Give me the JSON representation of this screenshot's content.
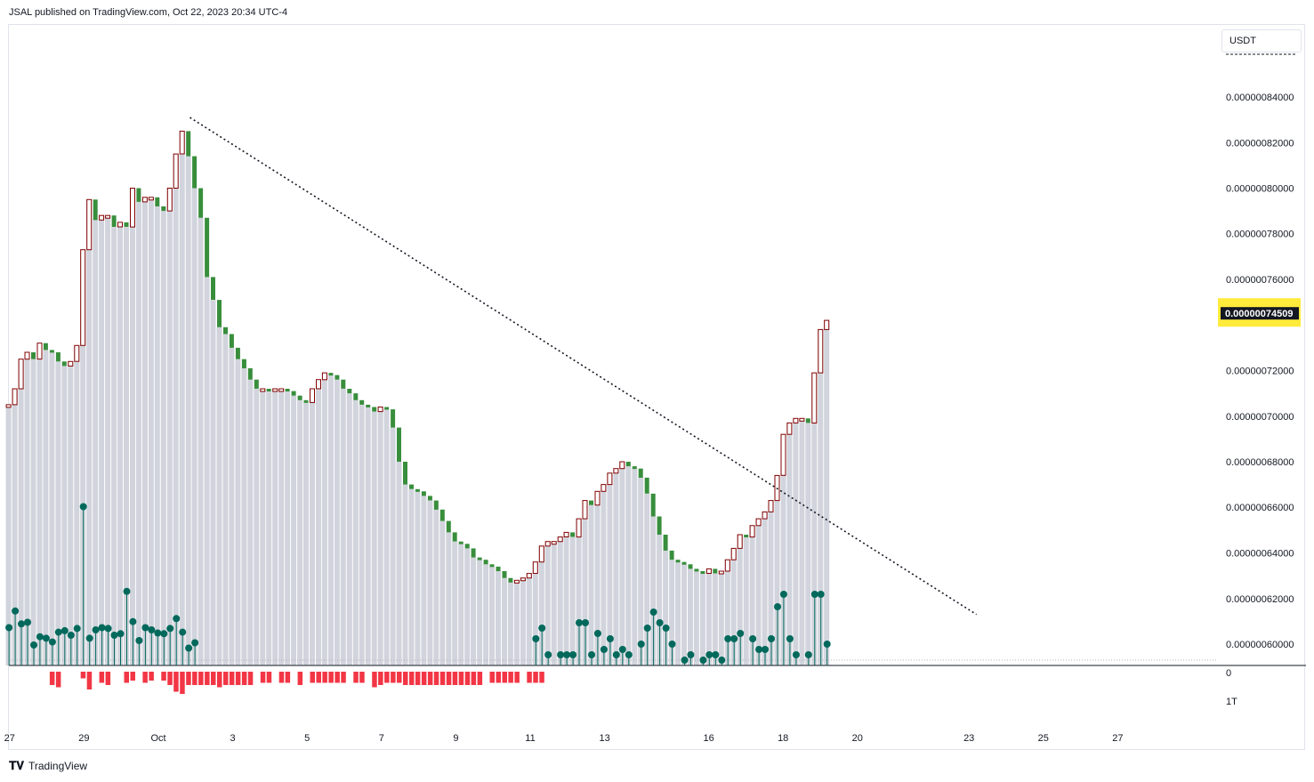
{
  "header": {
    "text": "JSAL published on TradingView.com, Oct 22, 2023 20:34 UTC-4"
  },
  "currency": "USDT",
  "footer": {
    "brand": "TradingView"
  },
  "colors": {
    "volume_profile": "#d1d4dc",
    "bull_body": "#ffffff",
    "bull_border": "#800000",
    "bear_body": "#388e3c",
    "pin": "#00695c",
    "neg_bar": "#f23645",
    "trendline": "#131722",
    "price_tag": "#131722",
    "price_tag_bg": "#ffeb3b"
  },
  "chart_data": {
    "type": "candlestick",
    "price_axis": {
      "ticks": [
        "0.00000084000",
        "0.00000082000",
        "0.00000080000",
        "0.00000078000",
        "0.00000076000",
        "0.00000072000",
        "0.00000070000",
        "0.00000068000",
        "0.00000066000",
        "0.00000064000",
        "0.00000062000",
        "0.00000060000"
      ],
      "range": [
        5.93e-07,
        8.62e-07
      ],
      "current_price": "0.00000074509",
      "current_value": 7.4509e-07
    },
    "indicator_axis": {
      "ticks": [
        "0",
        "1T"
      ]
    },
    "time_axis": {
      "labels": [
        "27",
        "29",
        "Oct",
        "3",
        "5",
        "7",
        "9",
        "11",
        "13",
        "16",
        "18",
        "20",
        "23",
        "25",
        "27"
      ],
      "positions_day": [
        -4,
        -2,
        0,
        2,
        4,
        6,
        8,
        10,
        12,
        14.8,
        16.8,
        18.8,
        21.8,
        23.8,
        25.8
      ]
    },
    "trendline": {
      "from": {
        "day": 0.85,
        "price": 8.31e-07
      },
      "to": {
        "day": 22.0,
        "price": 6.13e-07
      },
      "style": "dotted"
    },
    "closes": [
      7.05e-07,
      7.12e-07,
      7.25e-07,
      7.28e-07,
      7.25e-07,
      7.32e-07,
      7.29e-07,
      7.28e-07,
      7.24e-07,
      7.22e-07,
      7.24e-07,
      7.31e-07,
      7.73e-07,
      7.95e-07,
      7.86e-07,
      7.88e-07,
      7.88e-07,
      7.83e-07,
      7.85e-07,
      7.83e-07,
      8e-07,
      7.94e-07,
      7.96e-07,
      7.96e-07,
      7.92e-07,
      7.9e-07,
      8e-07,
      8.15e-07,
      8.25e-07,
      8.14e-07,
      8e-07,
      7.87e-07,
      7.61e-07,
      7.51e-07,
      7.39e-07,
      7.36e-07,
      7.3e-07,
      7.25e-07,
      7.21e-07,
      7.16e-07,
      7.12e-07,
      7.12e-07,
      7.11e-07,
      7.12e-07,
      7.12e-07,
      7.11e-07,
      7.09e-07,
      7.07e-07,
      7.06e-07,
      7.12e-07,
      7.16e-07,
      7.19e-07,
      7.18e-07,
      7.16e-07,
      7.12e-07,
      7.1e-07,
      7.07e-07,
      7.05e-07,
      7.04e-07,
      7.02e-07,
      7.04e-07,
      7.03e-07,
      6.95e-07,
      6.8e-07,
      6.7e-07,
      6.68e-07,
      6.67e-07,
      6.65e-07,
      6.63e-07,
      6.59e-07,
      6.54e-07,
      6.49e-07,
      6.45e-07,
      6.44e-07,
      6.42e-07,
      6.38e-07,
      6.37e-07,
      6.35e-07,
      6.34e-07,
      6.32e-07,
      6.29e-07,
      6.27e-07,
      6.28e-07,
      6.29e-07,
      6.31e-07,
      6.36e-07,
      6.43e-07,
      6.45e-07,
      6.45e-07,
      6.47e-07,
      6.49e-07,
      6.47e-07,
      6.55e-07,
      6.63e-07,
      6.61e-07,
      6.67e-07,
      6.7e-07,
      6.75e-07,
      6.77e-07,
      6.8e-07,
      6.78e-07,
      6.77e-07,
      6.73e-07,
      6.66e-07,
      6.56e-07,
      6.48e-07,
      6.41e-07,
      6.37e-07,
      6.36e-07,
      6.35e-07,
      6.33e-07,
      6.32e-07,
      6.31e-07,
      6.33e-07,
      6.31e-07,
      6.32e-07,
      6.37e-07,
      6.42e-07,
      6.48e-07,
      6.47e-07,
      6.52e-07,
      6.55e-07,
      6.58e-07,
      6.63e-07,
      6.74e-07,
      6.92e-07,
      6.97e-07,
      6.99e-07,
      6.99e-07,
      6.97e-07,
      7.19e-07,
      7.38e-07,
      7.42e-07
    ],
    "histogram_pins": [
      0.5,
      0.72,
      0.55,
      0.57,
      0.27,
      0.38,
      0.36,
      0.31,
      0.44,
      0.46,
      0.4,
      0.49,
      2.1,
      0.36,
      0.47,
      0.5,
      0.49,
      0.4,
      0.42,
      0.98,
      0.58,
      0.33,
      0.5,
      0.47,
      0.43,
      0.42,
      0.49,
      0.62,
      0.44,
      0.23,
      0.3,
      0.0,
      0.0,
      0.0,
      0.0,
      0.0,
      0.0,
      0.0,
      0.0,
      0.0,
      0.0,
      0.0,
      0.0,
      0.0,
      0.0,
      0.0,
      0.0,
      0.0,
      0.0,
      0.0,
      0.0,
      0.0,
      0.0,
      0.0,
      0.0,
      0.0,
      0.0,
      0.0,
      0.0,
      0.0,
      0.0,
      0.0,
      0.0,
      0.0,
      0.0,
      0.0,
      0.0,
      0.0,
      0.0,
      0.0,
      0.0,
      0.0,
      0.0,
      0.0,
      0.0,
      0.0,
      0.0,
      0.0,
      0.0,
      0.0,
      0.0,
      0.0,
      0.0,
      0.0,
      0.0,
      0.0,
      0.0,
      0.0,
      0.0,
      0.0,
      0.0,
      0.0,
      0.0,
      0.0,
      0.0,
      0.0,
      0.0,
      0.0,
      0.0,
      0.0,
      0.0,
      0.0,
      0.0,
      0.0,
      0.0,
      0.0,
      0.0,
      0.0,
      0.0,
      0.0,
      0.0,
      0.0,
      0.0,
      0.0,
      0.0,
      0.0,
      0.0,
      0.0,
      0.0,
      0.0,
      0.0,
      0.0,
      0.0,
      0.0,
      0.0,
      0.0,
      0.0,
      0.0,
      0.0,
      0.0,
      0.0,
      0.0,
      0.0
    ],
    "neg_bars": [
      0,
      0,
      0,
      0,
      0,
      0,
      0,
      -0.6,
      -0.7,
      0,
      0,
      0,
      -0.3,
      -0.8,
      0,
      -0.5,
      -0.6,
      0,
      0,
      -0.5,
      -0.4,
      0,
      -0.5,
      -0.4,
      0,
      -0.4,
      -0.6,
      -0.9,
      -1.0,
      -0.6,
      -0.6,
      -0.6,
      -0.6,
      -0.6,
      -0.7,
      -0.6,
      -0.6,
      -0.6,
      -0.6,
      -0.6,
      0,
      -0.5,
      -0.5,
      0,
      -0.5,
      -0.5,
      0,
      -0.6,
      0,
      -0.5,
      -0.5,
      -0.5,
      -0.5,
      -0.5,
      -0.5,
      0,
      -0.5,
      -0.5,
      0,
      -0.7,
      -0.6,
      -0.5,
      -0.5,
      -0.5,
      -0.6,
      -0.6,
      -0.6,
      -0.6,
      -0.6,
      -0.6,
      -0.6,
      -0.6,
      -0.6,
      -0.6,
      -0.6,
      -0.6,
      -0.6,
      0,
      -0.5,
      -0.5,
      -0.5,
      -0.5,
      -0.5,
      0,
      -0.5,
      -0.5,
      -0.5,
      0,
      0,
      0,
      0,
      0,
      0,
      0,
      0,
      0,
      0,
      0,
      0,
      0,
      0,
      0,
      0,
      0,
      0,
      0,
      0,
      0,
      0,
      0,
      0,
      0,
      0,
      0,
      0,
      0,
      0,
      0,
      0,
      0,
      0,
      0,
      0,
      0,
      0,
      0,
      0,
      0,
      0,
      0,
      0,
      0,
      0,
      0,
      0,
      0,
      0,
      0,
      0,
      0,
      0,
      0,
      0,
      0,
      0,
      0,
      0,
      0,
      0,
      0,
      0,
      0,
      0,
      0,
      0,
      0,
      0,
      0,
      0
    ]
  }
}
